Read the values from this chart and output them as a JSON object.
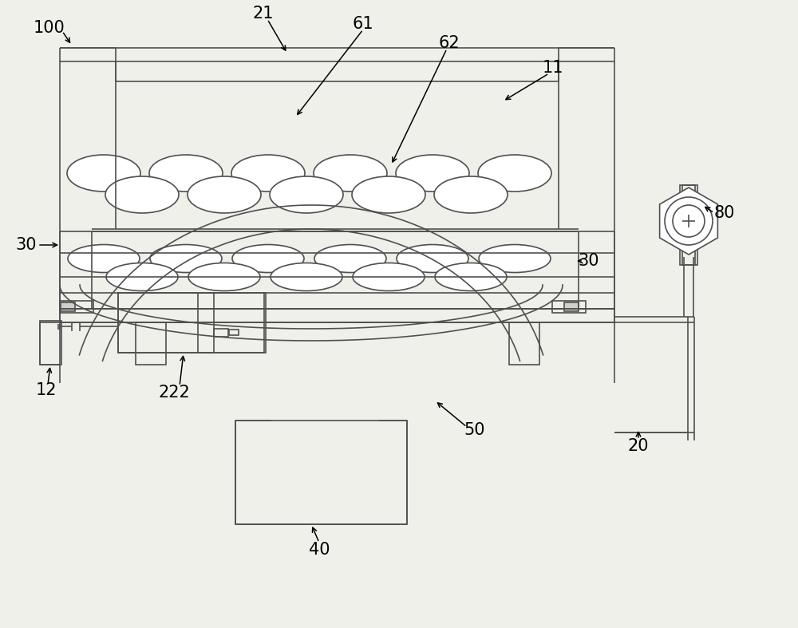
{
  "bg_color": "#f0f0eb",
  "lc": "#505050",
  "lw": 1.2,
  "fig_w": 10.0,
  "fig_h": 7.87
}
